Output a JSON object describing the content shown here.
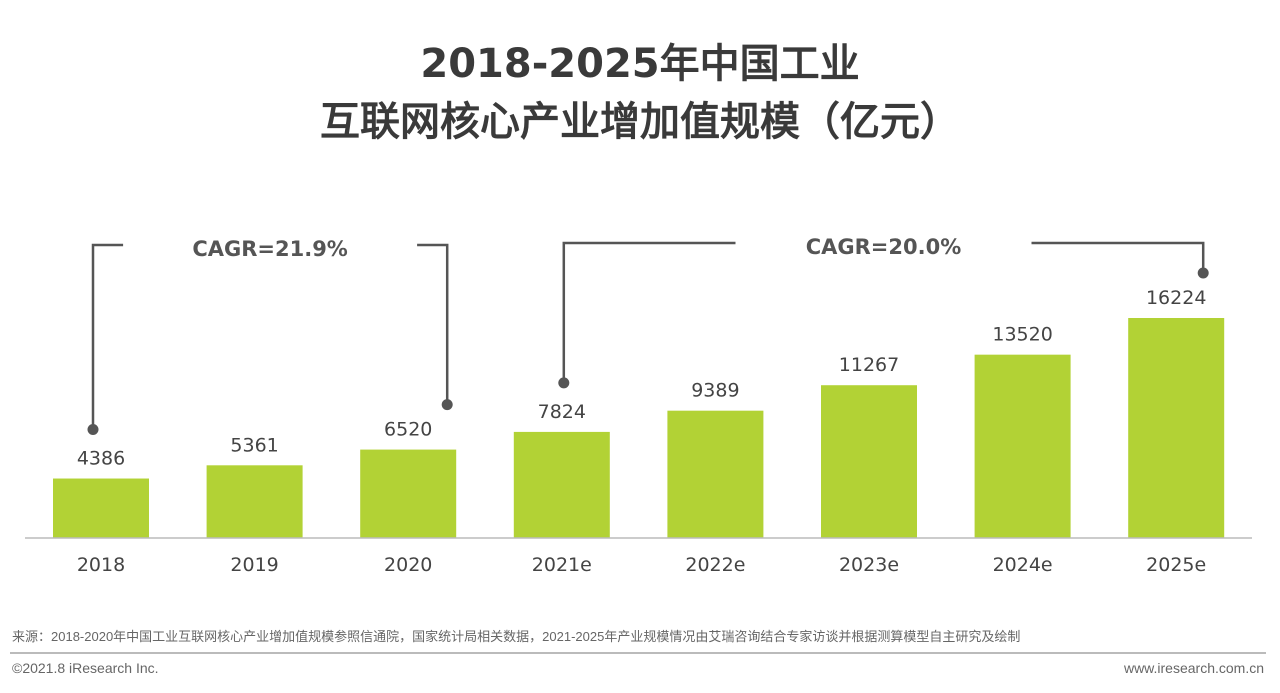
{
  "chart_data": {
    "type": "bar",
    "title_line1": "2018-2025年中国工业",
    "title_line2": "互联网核心产业增加值规模（亿元）",
    "categories": [
      "2018",
      "2019",
      "2020",
      "2021e",
      "2022e",
      "2023e",
      "2024e",
      "2025e"
    ],
    "values": [
      4386,
      5361,
      6520,
      7824,
      9389,
      11267,
      13520,
      16224
    ],
    "ylim": [
      0,
      16224
    ],
    "grid": false,
    "bar_color": "#b2d235",
    "annotations": [
      {
        "label": "CAGR=21.9%",
        "from": "2018",
        "to": "2020"
      },
      {
        "label": "CAGR=20.0%",
        "from": "2021e",
        "to": "2025e"
      }
    ]
  },
  "footer": {
    "source": "来源：2018-2020年中国工业互联网核心产业增加值规模参照信通院，国家统计局相关数据，2021-2025年产业规模情况由艾瑞咨询结合专家访谈并根据测算模型自主研究及绘制",
    "copyright": "©2021.8 iResearch Inc.",
    "website": "www.iresearch.com.cn"
  }
}
